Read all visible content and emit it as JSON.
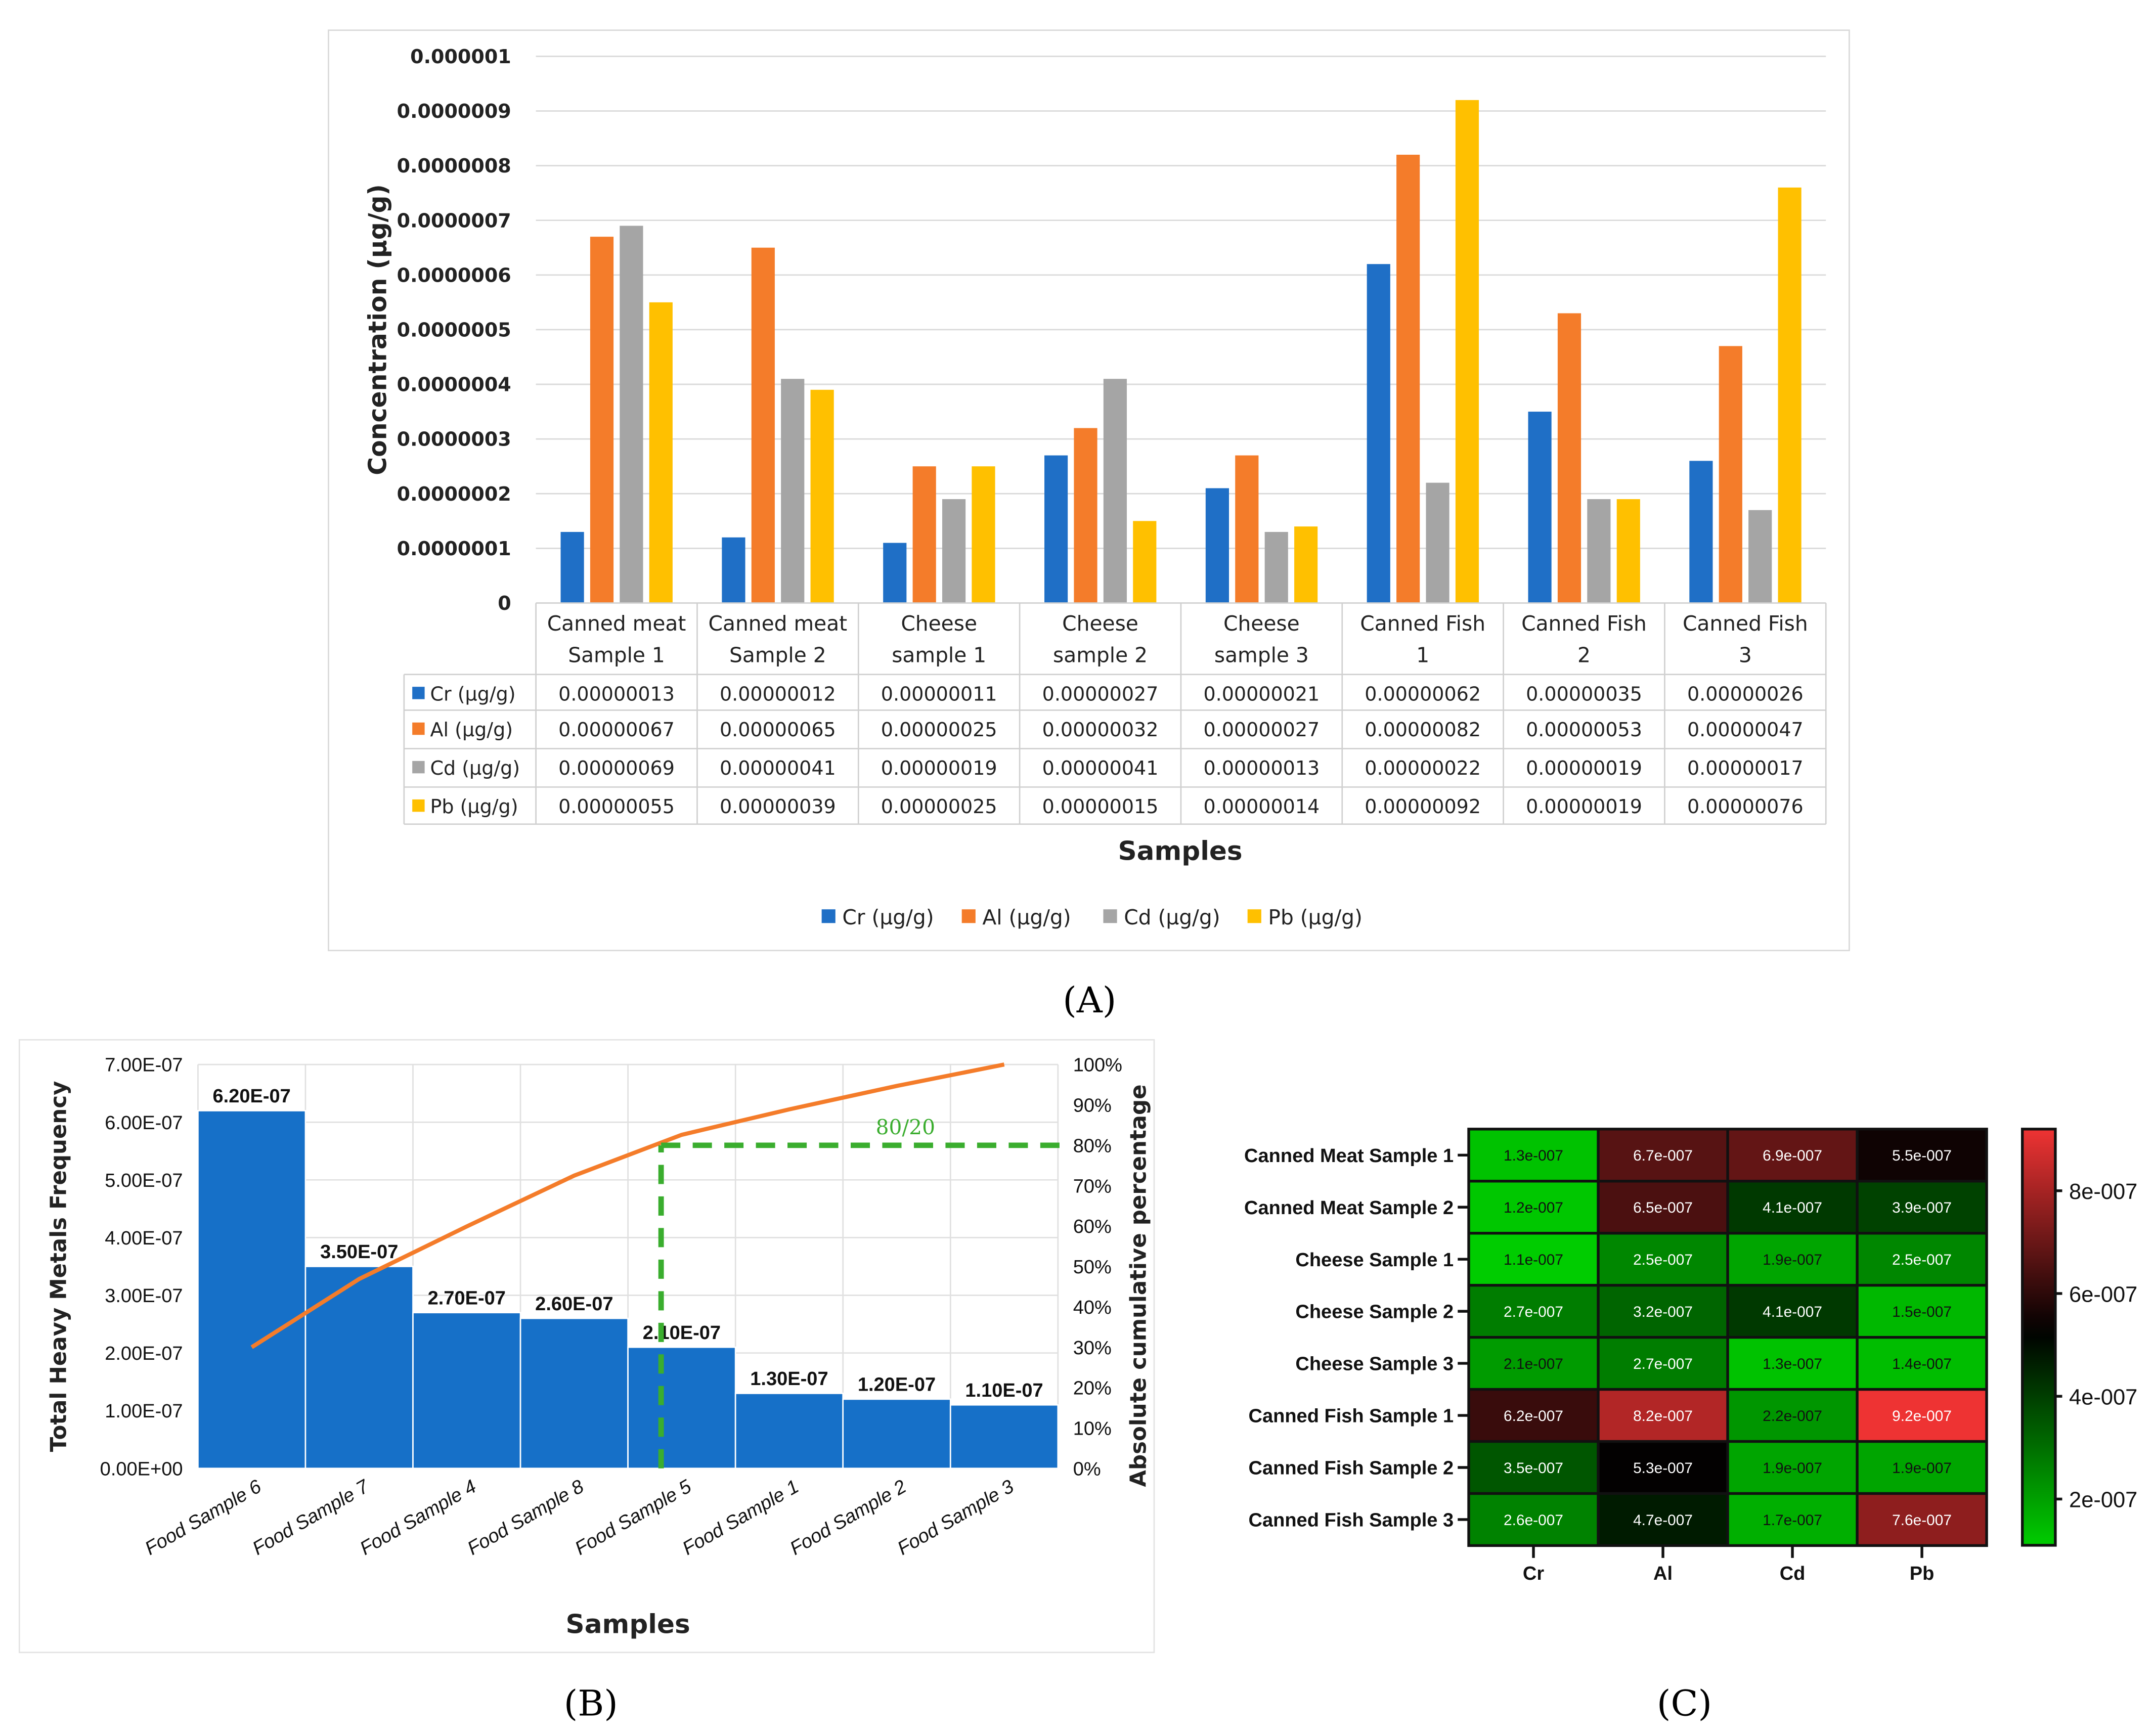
{
  "colors": {
    "Cr": "#1f6fc6",
    "Al": "#f47c2a",
    "Cd": "#a5a5a5",
    "Pb": "#ffc000",
    "pareto_bar": "#1670c8",
    "pareto_line": "#f47c2a",
    "pareto_ref": "#3aad2e",
    "heat_low": "#00cc00",
    "heat_mid": "#000000",
    "heat_high": "#ee3333"
  },
  "chart_data": [
    {
      "panel": "(A)",
      "type": "bar",
      "ylabel": "Concentration (µg/g)",
      "xlabel": "Samples",
      "ylim": [
        0,
        1e-06
      ],
      "yticks": [
        "0",
        "0.0000001",
        "0.0000002",
        "0.0000003",
        "0.0000004",
        "0.0000005",
        "0.0000006",
        "0.0000007",
        "0.0000008",
        "0.0000009",
        "0.000001"
      ],
      "categories": [
        [
          "Canned meat",
          "Sample 1"
        ],
        [
          "Canned meat",
          "Sample 2"
        ],
        [
          "Cheese",
          "sample 1"
        ],
        [
          "Cheese",
          "sample 2"
        ],
        [
          "Cheese",
          "sample 3"
        ],
        [
          "Canned Fish",
          "1"
        ],
        [
          "Canned Fish",
          "2"
        ],
        [
          "Canned Fish",
          "3"
        ]
      ],
      "legend_position": "bottom",
      "series": [
        {
          "key": "Cr",
          "name": "Cr (µg/g)",
          "values": [
            1.3e-07,
            1.2e-07,
            1.1e-07,
            2.7e-07,
            2.1e-07,
            6.2e-07,
            3.5e-07,
            2.6e-07
          ],
          "labels": [
            "0.00000013",
            "0.00000012",
            "0.00000011",
            "0.00000027",
            "0.00000021",
            "0.00000062",
            "0.00000035",
            "0.00000026"
          ]
        },
        {
          "key": "Al",
          "name": "Al (µg/g)",
          "values": [
            6.7e-07,
            6.5e-07,
            2.5e-07,
            3.2e-07,
            2.7e-07,
            8.2e-07,
            5.3e-07,
            4.7e-07
          ],
          "labels": [
            "0.00000067",
            "0.00000065",
            "0.00000025",
            "0.00000032",
            "0.00000027",
            "0.00000082",
            "0.00000053",
            "0.00000047"
          ]
        },
        {
          "key": "Cd",
          "name": "Cd (µg/g)",
          "values": [
            6.9e-07,
            4.1e-07,
            1.9e-07,
            4.1e-07,
            1.3e-07,
            2.2e-07,
            1.9e-07,
            1.7e-07
          ],
          "labels": [
            "0.00000069",
            "0.00000041",
            "0.00000019",
            "0.00000041",
            "0.00000013",
            "0.00000022",
            "0.00000019",
            "0.00000017"
          ]
        },
        {
          "key": "Pb",
          "name": "Pb (µg/g)",
          "values": [
            5.5e-07,
            3.9e-07,
            2.5e-07,
            1.5e-07,
            1.4e-07,
            9.2e-07,
            1.9e-07,
            7.6e-07
          ],
          "labels": [
            "0.00000055",
            "0.00000039",
            "0.00000025",
            "0.00000015",
            "0.00000014",
            "0.00000092",
            "0.00000019",
            "0.00000076"
          ]
        }
      ]
    },
    {
      "panel": "(B)",
      "type": "bar",
      "subtype": "pareto",
      "ylabel": "Total Heavy Metals Frequency",
      "y2label": "Absolute cumulative percentage",
      "xlabel": "Samples",
      "ylim": [
        0,
        7e-07
      ],
      "y2lim": [
        0,
        100
      ],
      "yticks": [
        "0.00E+00",
        "1.00E-07",
        "2.00E-07",
        "3.00E-07",
        "4.00E-07",
        "5.00E-07",
        "6.00E-07",
        "7.00E-07"
      ],
      "y2ticks": [
        "0%",
        "10%",
        "20%",
        "30%",
        "40%",
        "50%",
        "60%",
        "70%",
        "80%",
        "90%",
        "100%"
      ],
      "categories": [
        "Food Sample 6",
        "Food Sample 7",
        "Food Sample 4",
        "Food Sample 8",
        "Food Sample 5",
        "Food Sample 1",
        "Food Sample 2",
        "Food Sample 3"
      ],
      "values": [
        6.2e-07,
        3.5e-07,
        2.7e-07,
        2.6e-07,
        2.1e-07,
        1.3e-07,
        1.2e-07,
        1.1e-07
      ],
      "data_labels": [
        "6.20E-07",
        "3.50E-07",
        "2.70E-07",
        "2.60E-07",
        "2.10E-07",
        "1.30E-07",
        "1.20E-07",
        "1.10E-07"
      ],
      "cumulative_percent": [
        30.0,
        46.9,
        59.9,
        72.5,
        82.6,
        88.9,
        94.7,
        100
      ],
      "reference": {
        "label": "80/20",
        "percent": 80,
        "category_position": 4.5
      }
    },
    {
      "panel": "(C)",
      "type": "heatmap",
      "rows": [
        "Canned Meat Sample 1",
        "Canned Meat Sample 2",
        "Cheese Sample 1",
        "Cheese Sample 2",
        "Cheese Sample 3",
        "Canned Fish Sample 1",
        "Canned Fish Sample 2",
        "Canned Fish Sample 3"
      ],
      "columns": [
        "Cr",
        "Al",
        "Cd",
        "Pb"
      ],
      "values": [
        [
          1.3e-07,
          6.7e-07,
          6.9e-07,
          5.5e-07
        ],
        [
          1.2e-07,
          6.5e-07,
          4.1e-07,
          3.9e-07
        ],
        [
          1.1e-07,
          2.5e-07,
          1.9e-07,
          2.5e-07
        ],
        [
          2.7e-07,
          3.2e-07,
          4.1e-07,
          1.5e-07
        ],
        [
          2.1e-07,
          2.7e-07,
          1.3e-07,
          1.4e-07
        ],
        [
          6.2e-07,
          8.2e-07,
          2.2e-07,
          9.2e-07
        ],
        [
          3.5e-07,
          5.3e-07,
          1.9e-07,
          1.9e-07
        ],
        [
          2.6e-07,
          4.7e-07,
          1.7e-07,
          7.6e-07
        ]
      ],
      "cell_labels": [
        [
          "1.3e-007",
          "6.7e-007",
          "6.9e-007",
          "5.5e-007"
        ],
        [
          "1.2e-007",
          "6.5e-007",
          "4.1e-007",
          "3.9e-007"
        ],
        [
          "1.1e-007",
          "2.5e-007",
          "1.9e-007",
          "2.5e-007"
        ],
        [
          "2.7e-007",
          "3.2e-007",
          "4.1e-007",
          "1.5e-007"
        ],
        [
          "2.1e-007",
          "2.7e-007",
          "1.3e-007",
          "1.4e-007"
        ],
        [
          "6.2e-007",
          "8.2e-007",
          "2.2e-007",
          "9.2e-007"
        ],
        [
          "3.5e-007",
          "5.3e-007",
          "1.9e-007",
          "1.9e-007"
        ],
        [
          "2.6e-007",
          "4.7e-007",
          "1.7e-007",
          "7.6e-007"
        ]
      ],
      "colorbar_ticks": [
        {
          "value": 8e-07,
          "label": "8e-007"
        },
        {
          "value": 6e-07,
          "label": "6e-007"
        },
        {
          "value": 4e-07,
          "label": "4e-007"
        },
        {
          "value": 2e-07,
          "label": "2e-007"
        }
      ],
      "color_range": [
        1.1e-07,
        9.2e-07
      ]
    }
  ]
}
